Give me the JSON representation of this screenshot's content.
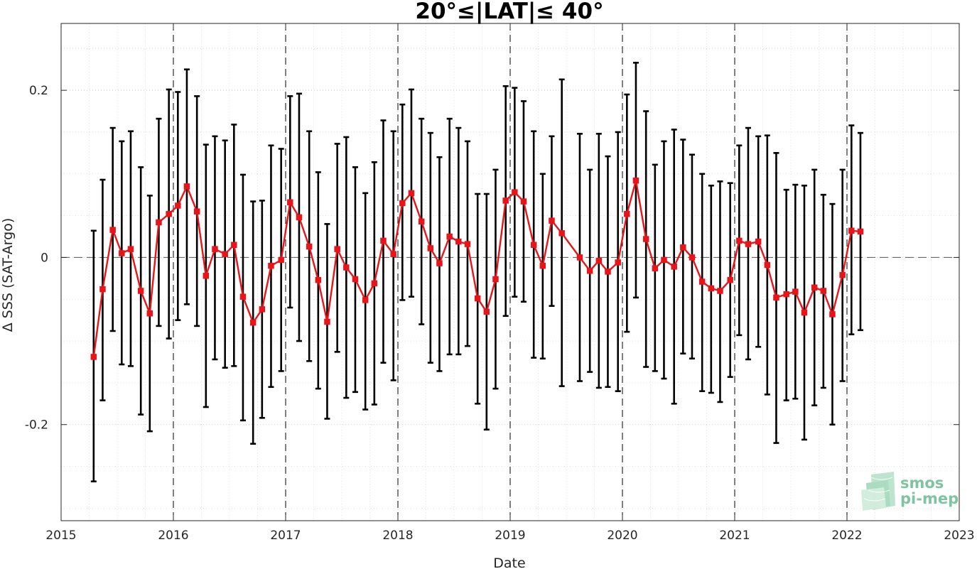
{
  "chart_data": {
    "type": "line",
    "title": "20°≤|LAT|≤ 40°",
    "xlabel": "Date",
    "ylabel": "Δ SSS (SAT-Argo)",
    "xlim": [
      2015,
      2023
    ],
    "ylim": [
      -0.315,
      0.28
    ],
    "x_ticks": [
      2015,
      2016,
      2017,
      2018,
      2019,
      2020,
      2021,
      2022,
      2023
    ],
    "x_tick_labels": [
      "2015",
      "2016",
      "2017",
      "2018",
      "2019",
      "2020",
      "2021",
      "2022",
      "2023"
    ],
    "y_ticks": [
      -0.2,
      0,
      0.2
    ],
    "y_tick_labels": [
      "-0.2",
      "0",
      "0.2"
    ],
    "grid": true,
    "year_boundary_lines": [
      2016,
      2017,
      2018,
      2019,
      2020,
      2021,
      2022
    ],
    "series": [
      {
        "color": "#e8141a",
        "errorbar_color": "#000000",
        "x": [
          2015.29,
          2015.37,
          2015.46,
          2015.54,
          2015.62,
          2015.71,
          2015.79,
          2015.87,
          2015.96,
          2016.04,
          2016.12,
          2016.21,
          2016.29,
          2016.37,
          2016.46,
          2016.54,
          2016.62,
          2016.71,
          2016.79,
          2016.87,
          2016.96,
          2017.04,
          2017.12,
          2017.21,
          2017.29,
          2017.37,
          2017.46,
          2017.54,
          2017.62,
          2017.71,
          2017.79,
          2017.87,
          2017.96,
          2018.04,
          2018.12,
          2018.21,
          2018.29,
          2018.37,
          2018.46,
          2018.54,
          2018.62,
          2018.71,
          2018.79,
          2018.87,
          2018.96,
          2019.04,
          2019.12,
          2019.21,
          2019.29,
          2019.37,
          2019.46,
          2019.62,
          2019.71,
          2019.79,
          2019.87,
          2019.96,
          2020.04,
          2020.12,
          2020.21,
          2020.29,
          2020.37,
          2020.46,
          2020.54,
          2020.62,
          2020.71,
          2020.79,
          2020.87,
          2020.96,
          2021.04,
          2021.12,
          2021.21,
          2021.29,
          2021.37,
          2021.46,
          2021.54,
          2021.62,
          2021.71,
          2021.79,
          2021.87,
          2021.96,
          2022.04,
          2022.12
        ],
        "y": [
          -0.119,
          -0.038,
          0.033,
          0.005,
          0.01,
          -0.04,
          -0.067,
          0.042,
          0.052,
          0.062,
          0.085,
          0.055,
          -0.022,
          0.01,
          0.004,
          0.015,
          -0.047,
          -0.078,
          -0.062,
          -0.01,
          -0.003,
          0.066,
          0.048,
          0.013,
          -0.027,
          -0.077,
          0.01,
          -0.012,
          -0.026,
          -0.051,
          -0.031,
          0.02,
          0.004,
          0.065,
          0.077,
          0.043,
          0.011,
          -0.007,
          0.025,
          0.019,
          0.016,
          -0.049,
          -0.065,
          -0.026,
          0.068,
          0.078,
          0.067,
          0.015,
          -0.01,
          0.044,
          0.029,
          0.0,
          -0.016,
          -0.004,
          -0.017,
          -0.006,
          0.052,
          0.092,
          0.022,
          -0.013,
          -0.003,
          -0.011,
          0.012,
          0.0,
          -0.029,
          -0.037,
          -0.04,
          -0.027,
          0.02,
          0.016,
          0.019,
          -0.009,
          -0.048,
          -0.044,
          -0.041,
          -0.066,
          -0.036,
          -0.04,
          -0.068,
          -0.021,
          0.032,
          0.031
        ],
        "err_upper": [
          0.032,
          0.093,
          0.155,
          0.139,
          0.151,
          0.108,
          0.074,
          0.166,
          0.201,
          0.198,
          0.225,
          0.193,
          0.135,
          0.145,
          0.14,
          0.159,
          0.099,
          0.067,
          0.068,
          0.134,
          0.13,
          0.193,
          0.196,
          0.151,
          0.102,
          0.04,
          0.136,
          0.144,
          0.108,
          0.077,
          0.114,
          0.164,
          0.151,
          0.183,
          0.201,
          0.166,
          0.149,
          0.12,
          0.166,
          0.155,
          0.139,
          0.076,
          0.076,
          0.105,
          0.205,
          0.203,
          0.187,
          0.151,
          0.1,
          0.145,
          0.213,
          0.148,
          0.105,
          0.148,
          0.121,
          0.15,
          0.195,
          0.233,
          0.175,
          0.111,
          0.139,
          0.153,
          0.141,
          0.123,
          0.1,
          0.086,
          0.091,
          0.089,
          0.134,
          0.155,
          0.145,
          0.146,
          0.125,
          0.081,
          0.087,
          0.086,
          0.105,
          0.075,
          0.064,
          0.105,
          0.158,
          0.149
        ],
        "err_lower": [
          -0.268,
          -0.171,
          -0.088,
          -0.128,
          -0.13,
          -0.188,
          -0.208,
          -0.082,
          -0.097,
          -0.075,
          -0.056,
          -0.082,
          -0.179,
          -0.122,
          -0.132,
          -0.13,
          -0.195,
          -0.223,
          -0.192,
          -0.155,
          -0.136,
          -0.06,
          -0.1,
          -0.124,
          -0.157,
          -0.193,
          -0.113,
          -0.168,
          -0.161,
          -0.182,
          -0.176,
          -0.126,
          -0.147,
          -0.051,
          -0.047,
          -0.08,
          -0.126,
          -0.136,
          -0.116,
          -0.116,
          -0.106,
          -0.175,
          -0.206,
          -0.157,
          -0.07,
          -0.047,
          -0.053,
          -0.12,
          -0.121,
          -0.058,
          -0.154,
          -0.148,
          -0.137,
          -0.156,
          -0.155,
          -0.16,
          -0.089,
          -0.048,
          -0.131,
          -0.136,
          -0.145,
          -0.175,
          -0.115,
          -0.121,
          -0.16,
          -0.162,
          -0.173,
          -0.143,
          -0.093,
          -0.122,
          -0.107,
          -0.164,
          -0.222,
          -0.171,
          -0.169,
          -0.218,
          -0.177,
          -0.156,
          -0.2,
          -0.148,
          -0.092,
          -0.087
        ]
      }
    ]
  },
  "logo": {
    "line1": "smos",
    "line2": "pi-mep",
    "color": "#7fc4a0"
  }
}
